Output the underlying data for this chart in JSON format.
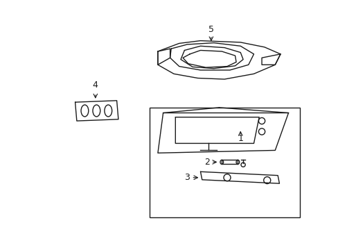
{
  "background_color": "#ffffff",
  "line_color": "#1a1a1a",
  "line_width": 1.0,
  "fig_width": 4.89,
  "fig_height": 3.6,
  "dpi": 100,
  "label_fontsize": 9
}
